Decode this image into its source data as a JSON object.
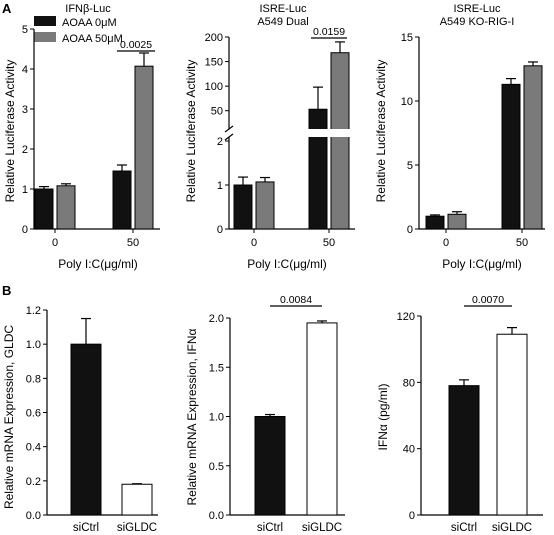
{
  "panel_labels": [
    "A",
    "B"
  ],
  "colors": {
    "black": "#111111",
    "gray": "#7a7a7a",
    "white": "#ffffff"
  },
  "chart_data": [
    {
      "type": "bar",
      "panel": "A",
      "title": "IFNβ-Luc",
      "ylabel": "Relative  Luciferase  Activity",
      "xlabel": "Poly I:C(μg/ml)",
      "categories": [
        "0",
        "50"
      ],
      "series": [
        {
          "name": "AOAA 0μM",
          "values": [
            1.0,
            1.45
          ],
          "errors": [
            0.06,
            0.15
          ]
        },
        {
          "name": "AOAA 50μM",
          "values": [
            1.08,
            4.07
          ],
          "errors": [
            0.05,
            0.33
          ]
        }
      ],
      "ylim": [
        0,
        5
      ],
      "yticks": [
        0,
        1,
        2,
        3,
        4,
        5
      ],
      "annotations": [
        {
          "text": "0.0025"
        }
      ]
    },
    {
      "type": "bar",
      "panel": "A",
      "title": "ISRE-Luc",
      "subtitle": "A549 Dual",
      "ylabel": "Relative  Luciferase  Activity",
      "xlabel": "Poly I:C(μg/ml)",
      "categories": [
        "0",
        "50"
      ],
      "series": [
        {
          "name": "AOAA 0μM",
          "values": [
            1.0,
            53
          ],
          "errors": [
            0.18,
            45
          ]
        },
        {
          "name": "AOAA 50μM",
          "values": [
            1.07,
            168
          ],
          "errors": [
            0.1,
            22
          ]
        }
      ],
      "axis_break": {
        "lower": [
          0,
          2
        ],
        "upper": [
          25,
          200
        ]
      },
      "yticks_lower": [
        0,
        1,
        2
      ],
      "yticks_upper": [
        50,
        100,
        150,
        200
      ],
      "annotations": [
        {
          "text": "0.0159"
        }
      ]
    },
    {
      "type": "bar",
      "panel": "A",
      "title": "ISRE-Luc",
      "subtitle": "A549 KO-RIG-I",
      "ylabel": "Relative  Luciferase  Activity",
      "xlabel": "Poly I:C(μg/ml)",
      "categories": [
        "0",
        "50"
      ],
      "series": [
        {
          "name": "AOAA 0μM",
          "values": [
            1.0,
            11.3
          ],
          "errors": [
            0.1,
            0.45
          ]
        },
        {
          "name": "AOAA 50μM",
          "values": [
            1.15,
            12.75
          ],
          "errors": [
            0.2,
            0.3
          ]
        }
      ],
      "ylim": [
        0,
        15
      ],
      "yticks": [
        0,
        5,
        10,
        15
      ]
    },
    {
      "type": "bar",
      "panel": "B",
      "ylabel": "Relative mRNA Expression, GLDC",
      "categories": [
        "siCtrl",
        "siGLDC"
      ],
      "values": [
        1.0,
        0.18
      ],
      "errors": [
        0.15,
        0.003
      ],
      "ylim": [
        0,
        1.2
      ],
      "yticks": [
        "0.0",
        "0.2",
        "0.4",
        "0.6",
        "0.8",
        "1.0",
        "1.2"
      ]
    },
    {
      "type": "bar",
      "panel": "B",
      "ylabel": "Relative mRNA Expression, IFNα",
      "categories": [
        "siCtrl",
        "siGLDC"
      ],
      "values": [
        1.0,
        1.95
      ],
      "errors": [
        0.02,
        0.02
      ],
      "ylim": [
        0,
        2.0
      ],
      "yticks": [
        "0.0",
        "0.5",
        "1.0",
        "1.5",
        "2.0"
      ],
      "annotations": [
        {
          "text": "0.0084"
        }
      ]
    },
    {
      "type": "bar",
      "panel": "B",
      "ylabel": "IFNα (pg/ml)",
      "categories": [
        "siCtrl",
        "siGLDC"
      ],
      "values": [
        78,
        109
      ],
      "errors": [
        3.5,
        4
      ],
      "ylim": [
        0,
        120
      ],
      "yticks": [
        "0",
        "40",
        "80",
        "120"
      ],
      "annotations": [
        {
          "text": "0.0070"
        }
      ]
    }
  ]
}
